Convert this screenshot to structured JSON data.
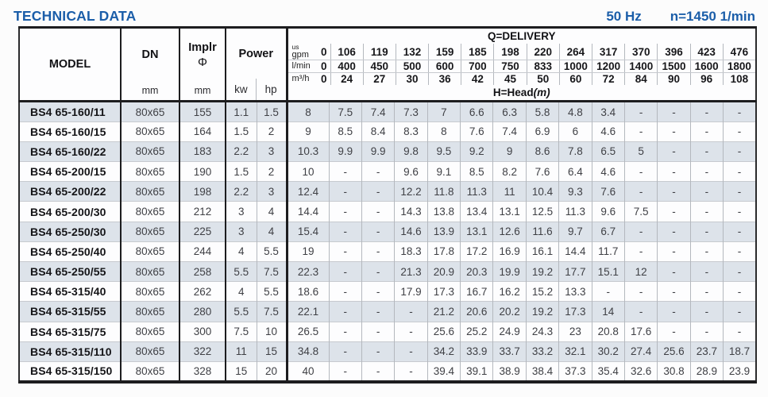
{
  "header": {
    "title": "TECHNICAL DATA",
    "frequency": "50 Hz",
    "speed": "n=1450 1/min"
  },
  "colors": {
    "accent_blue": "#1b5ea9",
    "row_stripe": "#dde3ea"
  },
  "table": {
    "columns": {
      "model": "MODEL",
      "dn": "DN",
      "dn_unit": "mm",
      "impeller": "Implr",
      "impeller_symbol": "Φ",
      "impeller_unit": "mm",
      "power": "Power",
      "power_kw": "kw",
      "power_hp": "hp"
    },
    "delivery": {
      "title": "Q=DELIVERY",
      "head_label": "H=Head",
      "head_unit": "(m)",
      "unit_rows": [
        {
          "key": "us-gpm",
          "unit_lines": [
            "us",
            "gpm"
          ],
          "zero": "0",
          "values": [
            "106",
            "119",
            "132",
            "159",
            "185",
            "198",
            "220",
            "264",
            "317",
            "370",
            "396",
            "423",
            "476"
          ]
        },
        {
          "key": "l-min",
          "unit_lines": [
            "l/min"
          ],
          "zero": "0",
          "values": [
            "400",
            "450",
            "500",
            "600",
            "700",
            "750",
            "833",
            "1000",
            "1200",
            "1400",
            "1500",
            "1600",
            "1800"
          ]
        },
        {
          "key": "m3-h",
          "unit_lines": [
            "m³/h"
          ],
          "zero": "0",
          "values": [
            "24",
            "27",
            "30",
            "36",
            "42",
            "45",
            "50",
            "60",
            "72",
            "84",
            "90",
            "96",
            "108"
          ]
        }
      ]
    },
    "rows": [
      {
        "model": "BS4 65-160/11",
        "dn": "80x65",
        "impeller": "155",
        "kw": "1.1",
        "hp": "1.5",
        "head": [
          "8",
          "7.5",
          "7.4",
          "7.3",
          "7",
          "6.6",
          "6.3",
          "5.8",
          "4.8",
          "3.4",
          "-",
          "-",
          "-",
          "-"
        ]
      },
      {
        "model": "BS4 65-160/15",
        "dn": "80x65",
        "impeller": "164",
        "kw": "1.5",
        "hp": "2",
        "head": [
          "9",
          "8.5",
          "8.4",
          "8.3",
          "8",
          "7.6",
          "7.4",
          "6.9",
          "6",
          "4.6",
          "-",
          "-",
          "-",
          "-"
        ]
      },
      {
        "model": "BS4 65-160/22",
        "dn": "80x65",
        "impeller": "183",
        "kw": "2.2",
        "hp": "3",
        "head": [
          "10.3",
          "9.9",
          "9.9",
          "9.8",
          "9.5",
          "9.2",
          "9",
          "8.6",
          "7.8",
          "6.5",
          "5",
          "-",
          "-",
          "-"
        ]
      },
      {
        "model": "BS4 65-200/15",
        "dn": "80x65",
        "impeller": "190",
        "kw": "1.5",
        "hp": "2",
        "head": [
          "10",
          "-",
          "-",
          "9.6",
          "9.1",
          "8.5",
          "8.2",
          "7.6",
          "6.4",
          "4.6",
          "-",
          "-",
          "-",
          "-"
        ]
      },
      {
        "model": "BS4 65-200/22",
        "dn": "80x65",
        "impeller": "198",
        "kw": "2.2",
        "hp": "3",
        "head": [
          "12.4",
          "-",
          "-",
          "12.2",
          "11.8",
          "11.3",
          "11",
          "10.4",
          "9.3",
          "7.6",
          "-",
          "-",
          "-",
          "-"
        ]
      },
      {
        "model": "BS4 65-200/30",
        "dn": "80x65",
        "impeller": "212",
        "kw": "3",
        "hp": "4",
        "head": [
          "14.4",
          "-",
          "-",
          "14.3",
          "13.8",
          "13.4",
          "13.1",
          "12.5",
          "11.3",
          "9.6",
          "7.5",
          "-",
          "-",
          "-"
        ]
      },
      {
        "model": "BS4 65-250/30",
        "dn": "80x65",
        "impeller": "225",
        "kw": "3",
        "hp": "4",
        "head": [
          "15.4",
          "-",
          "-",
          "14.6",
          "13.9",
          "13.1",
          "12.6",
          "11.6",
          "9.7",
          "6.7",
          "-",
          "-",
          "-",
          "-"
        ]
      },
      {
        "model": "BS4 65-250/40",
        "dn": "80x65",
        "impeller": "244",
        "kw": "4",
        "hp": "5.5",
        "head": [
          "19",
          "-",
          "-",
          "18.3",
          "17.8",
          "17.2",
          "16.9",
          "16.1",
          "14.4",
          "11.7",
          "-",
          "-",
          "-",
          "-"
        ]
      },
      {
        "model": "BS4 65-250/55",
        "dn": "80x65",
        "impeller": "258",
        "kw": "5.5",
        "hp": "7.5",
        "head": [
          "22.3",
          "-",
          "-",
          "21.3",
          "20.9",
          "20.3",
          "19.9",
          "19.2",
          "17.7",
          "15.1",
          "12",
          "-",
          "-",
          "-"
        ]
      },
      {
        "model": "BS4 65-315/40",
        "dn": "80x65",
        "impeller": "262",
        "kw": "4",
        "hp": "5.5",
        "head": [
          "18.6",
          "-",
          "-",
          "17.9",
          "17.3",
          "16.7",
          "16.2",
          "15.2",
          "13.3",
          "-",
          "-",
          "-",
          "-",
          "-"
        ]
      },
      {
        "model": "BS4 65-315/55",
        "dn": "80x65",
        "impeller": "280",
        "kw": "5.5",
        "hp": "7.5",
        "head": [
          "22.1",
          "-",
          "-",
          "-",
          "21.2",
          "20.6",
          "20.2",
          "19.2",
          "17.3",
          "14",
          "-",
          "-",
          "-",
          "-"
        ]
      },
      {
        "model": "BS4 65-315/75",
        "dn": "80x65",
        "impeller": "300",
        "kw": "7.5",
        "hp": "10",
        "head": [
          "26.5",
          "-",
          "-",
          "-",
          "25.6",
          "25.2",
          "24.9",
          "24.3",
          "23",
          "20.8",
          "17.6",
          "-",
          "-",
          "-"
        ]
      },
      {
        "model": "BS4 65-315/110",
        "dn": "80x65",
        "impeller": "322",
        "kw": "11",
        "hp": "15",
        "head": [
          "34.8",
          "-",
          "-",
          "-",
          "34.2",
          "33.9",
          "33.7",
          "33.2",
          "32.1",
          "30.2",
          "27.4",
          "25.6",
          "23.7",
          "18.7"
        ]
      },
      {
        "model": "BS4 65-315/150",
        "dn": "80x65",
        "impeller": "328",
        "kw": "15",
        "hp": "20",
        "head": [
          "40",
          "-",
          "-",
          "-",
          "39.4",
          "39.1",
          "38.9",
          "38.4",
          "37.3",
          "35.4",
          "32.6",
          "30.8",
          "28.9",
          "23.9"
        ]
      }
    ]
  }
}
